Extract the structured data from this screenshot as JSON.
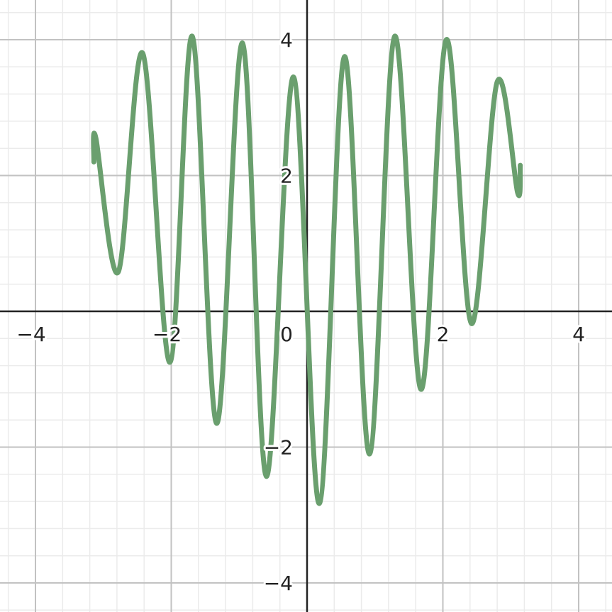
{
  "chart_data": {
    "type": "line",
    "title": "",
    "xlabel": "",
    "ylabel": "",
    "xlim": [
      -4.5,
      4.5
    ],
    "ylim": [
      -4.5,
      4.5
    ],
    "grid": true,
    "major_grid_step": 2,
    "minor_grid_step": 0.4,
    "x_ticks": [
      {
        "value": -4,
        "label": "−4"
      },
      {
        "value": -2,
        "label": "−2"
      },
      {
        "value": 2,
        "label": "2"
      },
      {
        "value": 4,
        "label": "4"
      }
    ],
    "y_ticks": [
      {
        "value": -4,
        "label": "−4"
      },
      {
        "value": -2,
        "label": "−2"
      },
      {
        "value": 2,
        "label": "2"
      },
      {
        "value": 4,
        "label": "4"
      }
    ],
    "origin_label": "0",
    "series": [
      {
        "color": "#6a9f6e",
        "x": [
          -3.14,
          -3.11,
          -2.78,
          -2.42,
          -2.02,
          -1.69,
          -1.33,
          -0.95,
          -0.6,
          -0.2,
          0.18,
          0.55,
          0.92,
          1.29,
          1.68,
          2.05,
          2.42,
          2.8,
          3.1,
          3.14
        ],
        "y": [
          2.2,
          2.55,
          0.58,
          3.8,
          -0.75,
          4.05,
          -1.65,
          3.95,
          -2.43,
          3.45,
          -2.83,
          3.75,
          -2.1,
          4.05,
          -1.15,
          4.0,
          -0.18,
          3.38,
          1.75,
          2.15
        ]
      }
    ]
  },
  "colors": {
    "minor_grid": "#ebebeb",
    "major_grid": "#c2c2c2",
    "axis": "#222222",
    "curve": "#6a9f6e"
  }
}
